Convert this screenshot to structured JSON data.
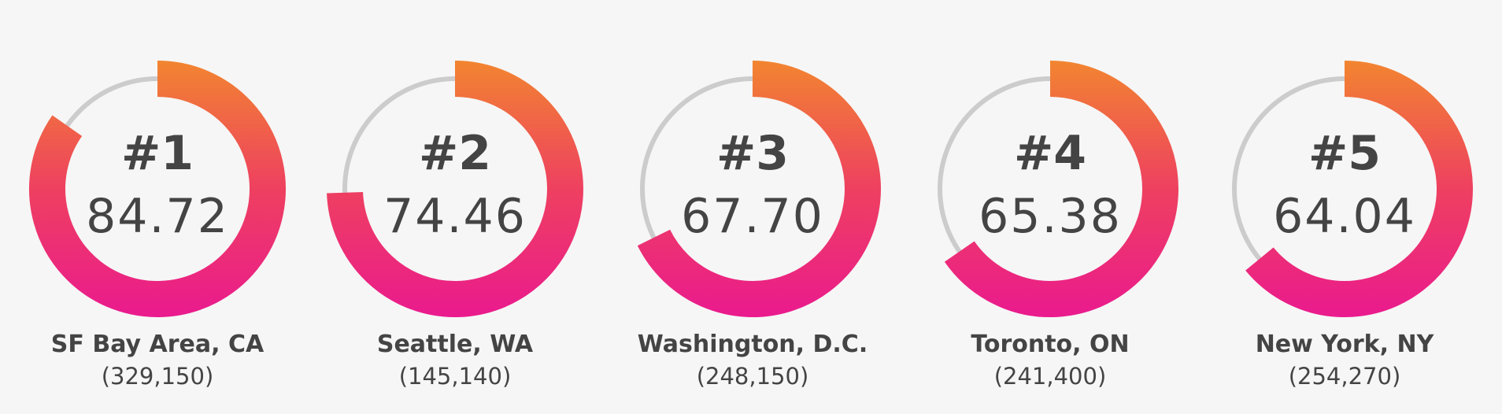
{
  "colors": {
    "track": "#cccccc",
    "gradient_top": "#f28530",
    "gradient_middle": "#ee4060",
    "gradient_bottom": "#ea1a8e",
    "text": "#444444",
    "background": "#f6f6f6"
  },
  "chart_data": {
    "type": "radial-gauge",
    "scale_max": 100,
    "items": [
      {
        "rank": "#1",
        "score": "84.72",
        "value": 84.72,
        "city": "SF Bay Area, CA",
        "population": "(329,150)"
      },
      {
        "rank": "#2",
        "score": "74.46",
        "value": 74.46,
        "city": "Seattle, WA",
        "population": "(145,140)"
      },
      {
        "rank": "#3",
        "score": "67.70",
        "value": 67.7,
        "city": "Washington, D.C.",
        "population": "(248,150)"
      },
      {
        "rank": "#4",
        "score": "65.38",
        "value": 65.38,
        "city": "Toronto, ON",
        "population": "(241,400)"
      },
      {
        "rank": "#5",
        "score": "64.04",
        "value": 64.04,
        "city": "New York, NY",
        "population": "(254,270)"
      }
    ]
  }
}
